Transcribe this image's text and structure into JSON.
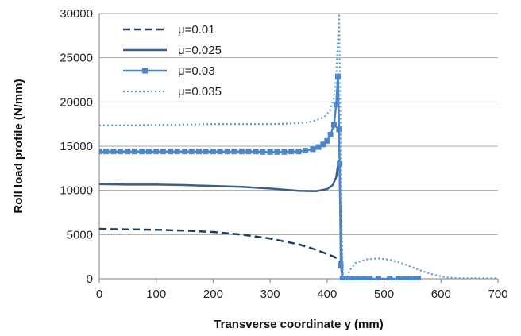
{
  "chart_data": {
    "type": "line",
    "title": "",
    "xlabel": "Transverse coordinate y (mm)",
    "ylabel": "Roll load profile (N/mm)",
    "xlim": [
      0,
      700
    ],
    "ylim": [
      0,
      30000
    ],
    "x_ticks": [
      0,
      100,
      200,
      300,
      400,
      500,
      600,
      700
    ],
    "y_ticks": [
      0,
      5000,
      10000,
      15000,
      20000,
      25000,
      30000
    ],
    "grid": "horizontal",
    "legend_position": "top-left",
    "series": [
      {
        "name": "μ=0.01",
        "style": "dashed",
        "color": "#1f3d66",
        "points": [
          [
            0,
            5650
          ],
          [
            50,
            5600
          ],
          [
            100,
            5550
          ],
          [
            150,
            5450
          ],
          [
            200,
            5300
          ],
          [
            250,
            5000
          ],
          [
            300,
            4550
          ],
          [
            350,
            3900
          ],
          [
            380,
            3300
          ],
          [
            400,
            2800
          ],
          [
            410,
            2550
          ],
          [
            418,
            2300
          ],
          [
            422,
            2000
          ],
          [
            424,
            1600
          ],
          [
            426,
            1000
          ],
          [
            427,
            0
          ]
        ]
      },
      {
        "name": "μ=0.025",
        "style": "solid",
        "color": "#3a5f8a",
        "points": [
          [
            0,
            10700
          ],
          [
            50,
            10650
          ],
          [
            100,
            10650
          ],
          [
            150,
            10600
          ],
          [
            200,
            10500
          ],
          [
            250,
            10400
          ],
          [
            300,
            10200
          ],
          [
            350,
            9950
          ],
          [
            380,
            9900
          ],
          [
            400,
            10150
          ],
          [
            410,
            10600
          ],
          [
            416,
            11500
          ],
          [
            420,
            13300
          ],
          [
            422,
            12000
          ],
          [
            424,
            6000
          ],
          [
            426,
            1500
          ],
          [
            427,
            0
          ]
        ]
      },
      {
        "name": "μ=0.03",
        "style": "solid-square",
        "color": "#4a86c8",
        "points": [
          [
            0,
            14400
          ],
          [
            12,
            14400
          ],
          [
            25,
            14400
          ],
          [
            37,
            14400
          ],
          [
            50,
            14400
          ],
          [
            62,
            14400
          ],
          [
            75,
            14400
          ],
          [
            87,
            14400
          ],
          [
            100,
            14400
          ],
          [
            112,
            14400
          ],
          [
            125,
            14400
          ],
          [
            137,
            14400
          ],
          [
            150,
            14400
          ],
          [
            162,
            14400
          ],
          [
            175,
            14400
          ],
          [
            187,
            14400
          ],
          [
            200,
            14400
          ],
          [
            212,
            14400
          ],
          [
            225,
            14400
          ],
          [
            237,
            14400
          ],
          [
            250,
            14400
          ],
          [
            262,
            14400
          ],
          [
            275,
            14400
          ],
          [
            287,
            14350
          ],
          [
            300,
            14350
          ],
          [
            312,
            14350
          ],
          [
            325,
            14350
          ],
          [
            337,
            14400
          ],
          [
            350,
            14400
          ],
          [
            362,
            14500
          ],
          [
            375,
            14650
          ],
          [
            385,
            14900
          ],
          [
            393,
            15200
          ],
          [
            400,
            15600
          ],
          [
            406,
            16300
          ],
          [
            412,
            17400
          ],
          [
            416,
            19700
          ],
          [
            419,
            22900
          ],
          [
            421,
            16900
          ],
          [
            422,
            13000
          ],
          [
            424,
            1500
          ],
          [
            427,
            0
          ],
          [
            435,
            0
          ],
          [
            445,
            0
          ],
          [
            455,
            0
          ],
          [
            465,
            0
          ],
          [
            475,
            0
          ],
          [
            490,
            0
          ],
          [
            510,
            0
          ],
          [
            525,
            0
          ],
          [
            535,
            0
          ],
          [
            545,
            0
          ],
          [
            555,
            0
          ],
          [
            560,
            0
          ]
        ]
      },
      {
        "name": "μ=0.035",
        "style": "dotted",
        "color": "#5b9bd5",
        "points": [
          [
            0,
            17350
          ],
          [
            50,
            17350
          ],
          [
            100,
            17400
          ],
          [
            150,
            17450
          ],
          [
            200,
            17500
          ],
          [
            250,
            17500
          ],
          [
            300,
            17500
          ],
          [
            330,
            17550
          ],
          [
            360,
            17650
          ],
          [
            380,
            17900
          ],
          [
            395,
            18300
          ],
          [
            405,
            19000
          ],
          [
            412,
            20500
          ],
          [
            416,
            23000
          ],
          [
            419,
            27000
          ],
          [
            421,
            30000
          ],
          [
            423,
            20000
          ],
          [
            425,
            8000
          ],
          [
            428,
            0
          ],
          [
            435,
            0
          ],
          [
            440,
            1000
          ],
          [
            450,
            1800
          ],
          [
            470,
            2200
          ],
          [
            490,
            2300
          ],
          [
            510,
            2150
          ],
          [
            530,
            1800
          ],
          [
            550,
            1300
          ],
          [
            570,
            800
          ],
          [
            590,
            400
          ],
          [
            610,
            150
          ],
          [
            630,
            50
          ],
          [
            650,
            50
          ],
          [
            700,
            50
          ]
        ]
      }
    ]
  }
}
